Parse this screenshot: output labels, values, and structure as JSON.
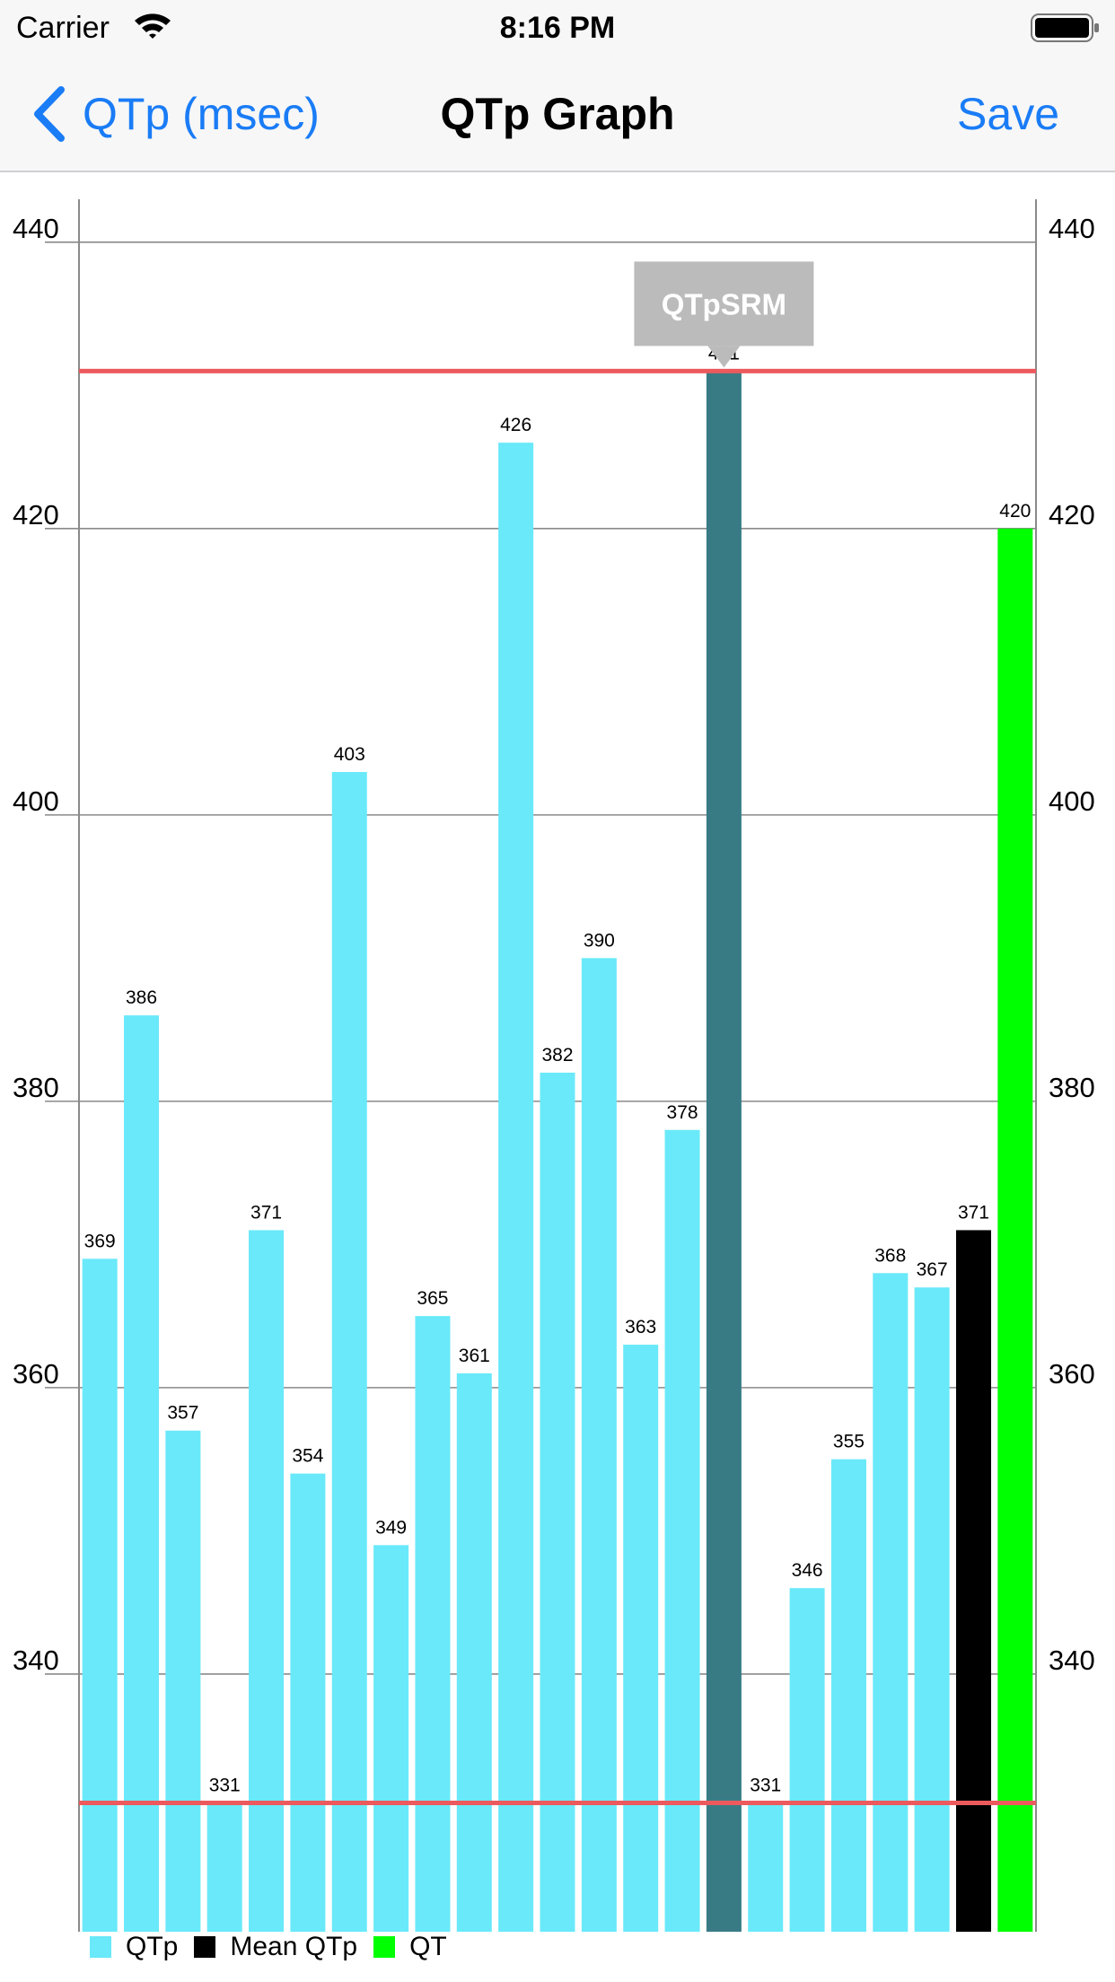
{
  "status_bar": {
    "carrier": "Carrier",
    "time": "8:16 PM"
  },
  "nav": {
    "back_label": "QTp (msec)",
    "title": "QTp Graph",
    "save_label": "Save"
  },
  "colors": {
    "qtp": "#69e9fa",
    "highlight": "#387b85",
    "mean": "#000000",
    "qt": "#00ff00",
    "ref_line": "#ec5a5d",
    "grid": "#8a8a8a",
    "tooltip": "#bbbbbb",
    "link": "#1a7cf6"
  },
  "chart_data": {
    "type": "bar",
    "title": "QTp Graph",
    "ylim": [
      322,
      443
    ],
    "y_ticks": [
      340,
      360,
      380,
      400,
      420,
      440
    ],
    "grid": true,
    "y_axis_labels_on_both_sides": true,
    "legend_position": "bottom-left",
    "series": [
      {
        "name": "QTp",
        "values": [
          369,
          386,
          357,
          331,
          371,
          354,
          403,
          349,
          365,
          361,
          426,
          382,
          390,
          363,
          378,
          431,
          331,
          346,
          355,
          368,
          367
        ]
      },
      {
        "name": "Mean QTp",
        "values": [
          371
        ]
      },
      {
        "name": "QT",
        "values": [
          420
        ]
      }
    ],
    "data_labels": [
      "369",
      "386",
      "357",
      "331",
      "371",
      "354",
      "403",
      "349",
      "365",
      "361",
      "426",
      "382",
      "390",
      "363",
      "378",
      "431",
      "331",
      "346",
      "355",
      "368",
      "367",
      "371",
      "420"
    ],
    "highlighted_index": 15,
    "reference_lines": [
      431,
      331
    ],
    "tooltip": "QTpSRM"
  }
}
